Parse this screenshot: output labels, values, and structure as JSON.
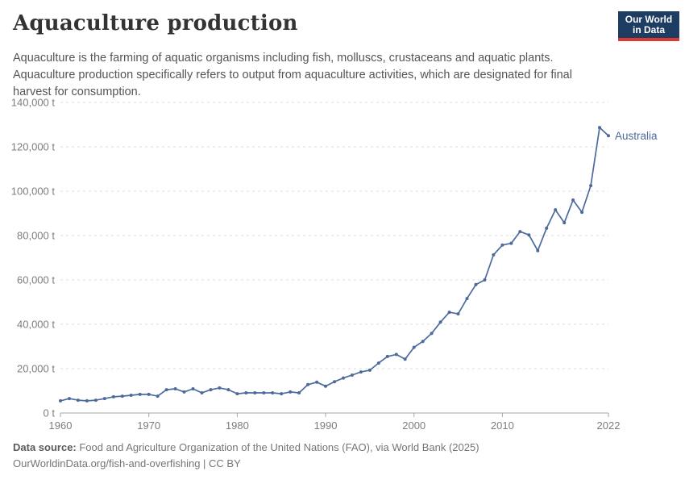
{
  "header": {
    "title": "Aquaculture production",
    "subtitle": "Aquaculture is the farming of aquatic organisms including fish, molluscs, crustaceans and aquatic plants. Aquaculture production specifically refers to output from aquaculture activities, which are designated for final harvest for consumption.",
    "logo": {
      "line1": "Our World",
      "line2": "in Data",
      "bg_color": "#1d3d63",
      "accent_color": "#d93a34"
    }
  },
  "chart_data": {
    "type": "line",
    "title": "Aquaculture production",
    "entity_label": "Australia",
    "line_color": "#4c6a9c",
    "grid": "dashed horizontal gridlines",
    "legend_position": "end-of-line label",
    "xlim": [
      1960,
      2022
    ],
    "ylim": [
      0,
      140000
    ],
    "x_ticks": [
      1960,
      1970,
      1980,
      1990,
      2000,
      2010,
      2022
    ],
    "y_ticks": [
      0,
      20000,
      40000,
      60000,
      80000,
      100000,
      120000,
      140000
    ],
    "y_tick_suffix": " t",
    "xlabel": "",
    "ylabel": "",
    "series": [
      {
        "name": "Australia",
        "color": "#4c6a9c",
        "x": [
          1960,
          1961,
          1962,
          1963,
          1964,
          1965,
          1966,
          1967,
          1968,
          1969,
          1970,
          1971,
          1972,
          1973,
          1974,
          1975,
          1976,
          1977,
          1978,
          1979,
          1980,
          1981,
          1982,
          1983,
          1984,
          1985,
          1986,
          1987,
          1988,
          1989,
          1990,
          1991,
          1992,
          1993,
          1994,
          1995,
          1996,
          1997,
          1998,
          1999,
          2000,
          2001,
          2002,
          2003,
          2004,
          2005,
          2006,
          2007,
          2008,
          2009,
          2010,
          2011,
          2012,
          2013,
          2014,
          2015,
          2016,
          2017,
          2018,
          2019,
          2020,
          2021,
          2022
        ],
        "values": [
          5500,
          6500,
          5800,
          5500,
          5800,
          6500,
          7300,
          7600,
          8000,
          8400,
          8400,
          7600,
          10500,
          10900,
          9500,
          10900,
          9100,
          10500,
          11300,
          10500,
          8700,
          9100,
          9100,
          9100,
          9100,
          8700,
          9500,
          9100,
          12800,
          13900,
          12100,
          14100,
          15800,
          17100,
          18500,
          19300,
          22500,
          25500,
          26400,
          24300,
          29600,
          32300,
          35900,
          41000,
          45400,
          44700,
          51600,
          57900,
          60000,
          71300,
          75700,
          76500,
          81800,
          80300,
          73200,
          83300,
          91600,
          85800,
          96000,
          90500,
          102500,
          128700,
          125000
        ]
      }
    ]
  },
  "footer": {
    "datasource_label": "Data source:",
    "datasource_text": " Food and Agriculture Organization of the United Nations (FAO), via World Bank (2025)",
    "url_line": "OurWorldinData.org/fish-and-overfishing | CC BY"
  }
}
